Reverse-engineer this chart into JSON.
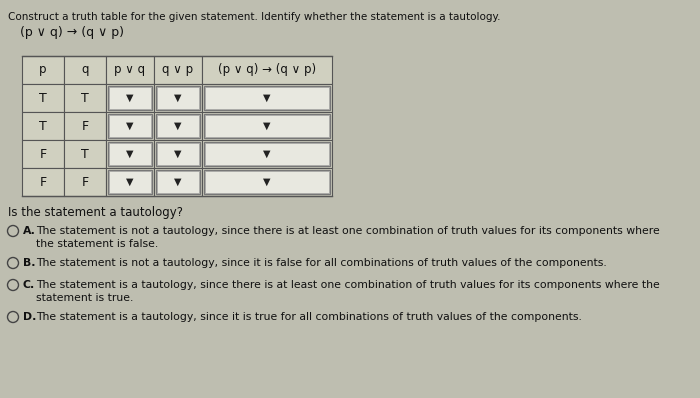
{
  "title_line1": "Construct a truth table for the given statement. Identify whether the statement is a tautology.",
  "title_line2": "(p ∨ q) → (q ∨ p)",
  "col_headers": [
    "p",
    "q",
    "p ∨ q",
    "q ∨ p",
    "(p ∨ q) → (q ∨ p)"
  ],
  "rows": [
    [
      "T",
      "T",
      "▼",
      "▼",
      "▼"
    ],
    [
      "T",
      "F",
      "▼",
      "▼",
      "▼"
    ],
    [
      "F",
      "T",
      "▼",
      "▼",
      "▼"
    ],
    [
      "F",
      "F",
      "▼",
      "▼",
      "▼"
    ]
  ],
  "question": "Is the statement a tautology?",
  "options": [
    [
      "A.",
      "The statement is not a tautology, since there is at least one combination of truth values for its components where",
      "the statement is false."
    ],
    [
      "B.",
      "The statement is not a tautology, since it is false for all combinations of truth values of the components.",
      ""
    ],
    [
      "C.",
      "The statement is a tautology, since there is at least one combination of truth values for its components where the",
      "statement is true."
    ],
    [
      "D.",
      "The statement is a tautology, since it is true for all combinations of truth values of the components.",
      ""
    ]
  ],
  "bg_color": "#bebeb0",
  "table_bg": "#d0d0c0",
  "cell_bg": "#e0e0d0",
  "cell_border": "#888888",
  "table_border": "#555555",
  "text_color": "#111111",
  "title_fs": 7.5,
  "subtitle_fs": 9.0,
  "header_fs": 8.5,
  "body_fs": 9.0,
  "question_fs": 8.5,
  "option_fs": 7.8
}
